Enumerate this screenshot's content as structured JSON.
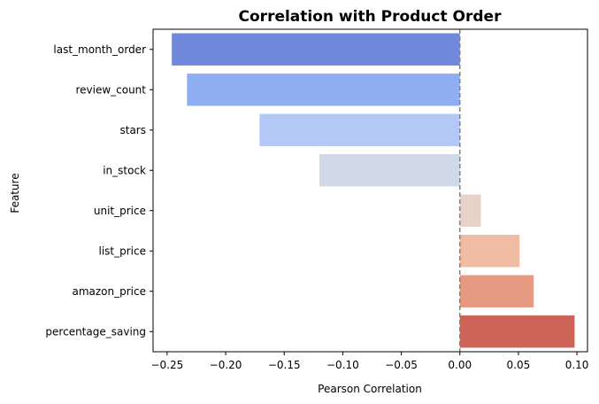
{
  "chart_data": {
    "type": "bar",
    "orientation": "horizontal",
    "title": "Correlation with Product Order",
    "xlabel": "Pearson Correlation",
    "ylabel": "Feature",
    "categories": [
      "last_month_order",
      "review_count",
      "stars",
      "in_stock",
      "unit_price",
      "list_price",
      "amazon_price",
      "percentage_saving"
    ],
    "values": [
      -0.246,
      -0.233,
      -0.171,
      -0.12,
      0.018,
      0.051,
      0.063,
      0.098
    ],
    "colors": [
      "#6f88db",
      "#8fadf1",
      "#b3c8f6",
      "#d0d9e8",
      "#e8d3cb",
      "#f0bca4",
      "#e59a81",
      "#cd6357"
    ],
    "xlim": [
      -0.262,
      0.109
    ],
    "xticks": [
      -0.25,
      -0.2,
      -0.15,
      -0.1,
      -0.05,
      0.0,
      0.05,
      0.1
    ],
    "xtick_labels": [
      "−0.25",
      "−0.20",
      "−0.15",
      "−0.10",
      "−0.05",
      "0.00",
      "0.05",
      "0.10"
    ],
    "reference_line": {
      "x": 0,
      "style": "dashed",
      "color": "#808080"
    },
    "grid": false,
    "legend": "none"
  }
}
